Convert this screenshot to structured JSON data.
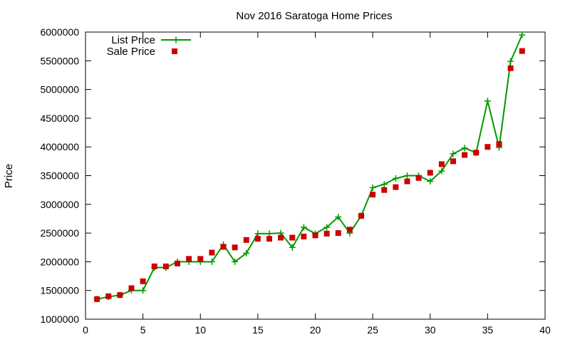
{
  "chart_data": {
    "type": "line",
    "title": "Nov 2016 Saratoga Home Prices",
    "xlabel": "",
    "ylabel": "Price",
    "xlim": [
      0,
      40
    ],
    "ylim": [
      1000000,
      6000000
    ],
    "x_ticks": [
      0,
      5,
      10,
      15,
      20,
      25,
      30,
      35,
      40
    ],
    "y_ticks": [
      1000000,
      1500000,
      2000000,
      2500000,
      3000000,
      3500000,
      4000000,
      4500000,
      5000000,
      5500000,
      6000000
    ],
    "grid": false,
    "legend_position": "top-left",
    "x": [
      1,
      2,
      3,
      4,
      5,
      6,
      7,
      8,
      9,
      10,
      11,
      12,
      13,
      14,
      15,
      16,
      17,
      18,
      19,
      20,
      21,
      22,
      23,
      24,
      25,
      26,
      27,
      28,
      29,
      30,
      31,
      32,
      33,
      34,
      35,
      36,
      37,
      38
    ],
    "series": [
      {
        "name": "List Price",
        "style": "line-plus",
        "color": "#009900",
        "values": [
          1350000,
          1390000,
          1420000,
          1500000,
          1500000,
          1900000,
          1900000,
          2000000,
          2000000,
          2000000,
          2000000,
          2300000,
          2000000,
          2150000,
          2490000,
          2490000,
          2500000,
          2250000,
          2600000,
          2490000,
          2600000,
          2780000,
          2500000,
          2800000,
          3290000,
          3350000,
          3450000,
          3500000,
          3500000,
          3400000,
          3580000,
          3880000,
          3980000,
          3900000,
          4800000,
          3990000,
          5490000,
          5950000
        ]
      },
      {
        "name": "Sale Price",
        "style": "square-points",
        "color": "#cc0000",
        "values": [
          1350000,
          1400000,
          1420000,
          1540000,
          1660000,
          1920000,
          1920000,
          1970000,
          2050000,
          2050000,
          2160000,
          2260000,
          2250000,
          2380000,
          2400000,
          2400000,
          2420000,
          2420000,
          2440000,
          2460000,
          2490000,
          2500000,
          2560000,
          2800000,
          3170000,
          3250000,
          3300000,
          3400000,
          3460000,
          3550000,
          3700000,
          3750000,
          3860000,
          3900000,
          4000000,
          4050000,
          5370000,
          5670000
        ]
      }
    ]
  }
}
